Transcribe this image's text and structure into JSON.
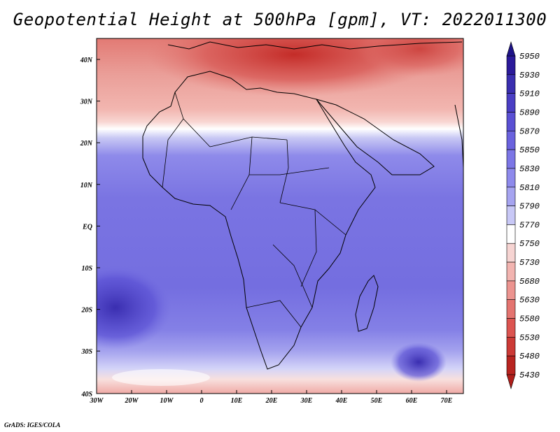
{
  "title": "Geopotential Height at 500hPa [gpm], VT: 2022011300",
  "footer": "GrADS: IGES/COLA",
  "map": {
    "lon_labels": [
      "30W",
      "20W",
      "10W",
      "0",
      "10E",
      "20E",
      "30E",
      "40E",
      "50E",
      "60E",
      "70E"
    ],
    "lat_labels": [
      "40N",
      "30N",
      "20N",
      "10N",
      "EQ",
      "10S",
      "20S",
      "30S",
      "40S"
    ]
  },
  "colorbar": {
    "levels": [
      "5950",
      "5930",
      "5910",
      "5890",
      "5870",
      "5850",
      "5830",
      "5810",
      "5790",
      "5770",
      "5750",
      "5730",
      "5680",
      "5630",
      "5580",
      "5530",
      "5480",
      "5430"
    ],
    "colors": [
      "#2b1a9a",
      "#3a2eb0",
      "#4a3ec4",
      "#5a50d4",
      "#6a62de",
      "#7c76e6",
      "#8e8aec",
      "#a6a4f0",
      "#c8c8f6",
      "#ffffff",
      "#f6d4d2",
      "#f2b4b0",
      "#ec9490",
      "#e47470",
      "#dc5450",
      "#cc3a36",
      "#b82420"
    ]
  },
  "colors": {
    "frame": "#000000",
    "background": "#ffffff"
  }
}
